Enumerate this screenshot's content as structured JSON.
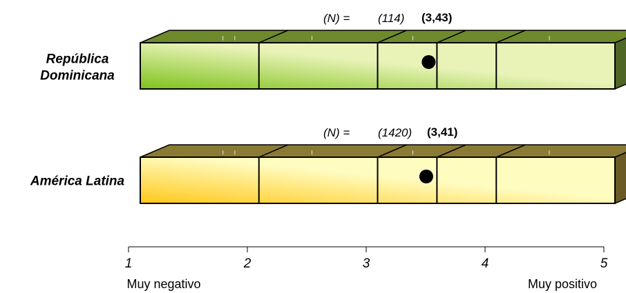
{
  "chart_data": {
    "type": "bar",
    "orientation": "horizontal",
    "style": "3d-box-plot",
    "categories": [
      "República Dominicana",
      "América Latina"
    ],
    "series": [
      {
        "category": "República Dominicana",
        "n_label": "(N) =",
        "n_value": "(114)",
        "mean": 3.43,
        "mean_label": "(3,43)",
        "box_dividers": [
          2,
          3,
          3.5,
          4
        ],
        "color_light": "#e9f3b8",
        "color_dark": "#7fc21c",
        "color_top": "#6f8a2c",
        "color_side": "#4f6626"
      },
      {
        "category": "América Latina",
        "n_label": "(N) =",
        "n_value": "(1420)",
        "mean": 3.41,
        "mean_label": "(3,41)",
        "box_dividers": [
          2,
          3,
          3.5,
          4
        ],
        "color_light": "#fffcc0",
        "color_dark": "#ffc81a",
        "color_top": "#8a7a34",
        "color_side": "#6a5a26"
      }
    ],
    "xaxis": {
      "ticks": [
        1,
        2,
        3,
        4,
        5
      ],
      "range": [
        1,
        5
      ],
      "left_label": "Muy negativo",
      "right_label": "Muy positivo"
    },
    "grid": false,
    "legend": "none"
  }
}
